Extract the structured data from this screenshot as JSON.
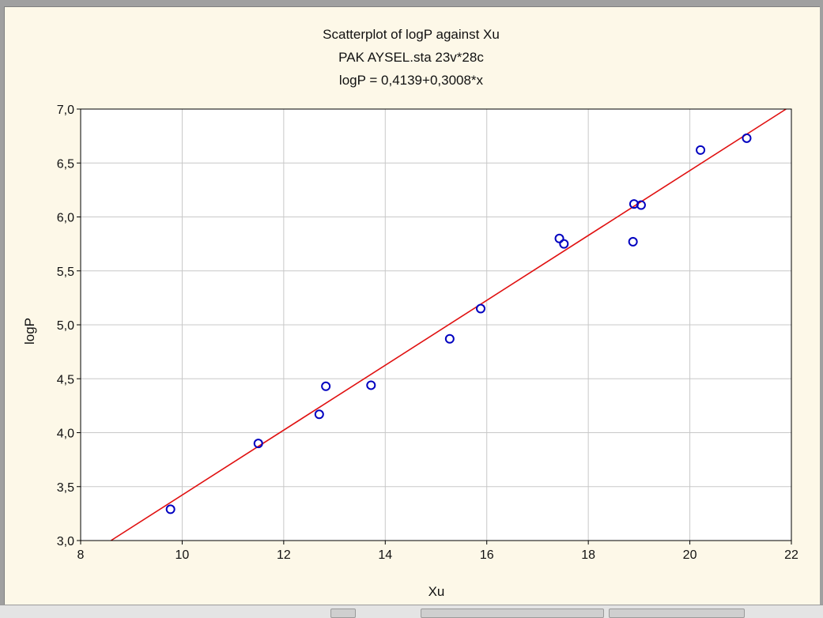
{
  "chart_data": {
    "type": "scatter",
    "title_lines": [
      "Scatterplot of logP against Xu",
      "PAK AYSEL.sta 23v*28c",
      "logP = 0,4139+0,3008*x"
    ],
    "xlabel": "Xu",
    "ylabel": "logP",
    "xlim": [
      8,
      22
    ],
    "ylim": [
      3.0,
      7.0
    ],
    "x_ticks": [
      "8",
      "10",
      "12",
      "14",
      "16",
      "18",
      "20",
      "22"
    ],
    "y_ticks": [
      "3,0",
      "3,5",
      "4,0",
      "4,5",
      "5,0",
      "5,5",
      "6,0",
      "6,5",
      "7,0"
    ],
    "grid": true,
    "points": [
      {
        "x": 9.77,
        "y": 3.29
      },
      {
        "x": 11.5,
        "y": 3.9
      },
      {
        "x": 12.7,
        "y": 4.17
      },
      {
        "x": 12.83,
        "y": 4.43
      },
      {
        "x": 13.72,
        "y": 4.44
      },
      {
        "x": 15.27,
        "y": 4.87
      },
      {
        "x": 15.88,
        "y": 5.15
      },
      {
        "x": 17.43,
        "y": 5.8
      },
      {
        "x": 17.52,
        "y": 5.75
      },
      {
        "x": 18.88,
        "y": 5.77
      },
      {
        "x": 18.9,
        "y": 6.12
      },
      {
        "x": 19.04,
        "y": 6.11
      },
      {
        "x": 20.21,
        "y": 6.62
      },
      {
        "x": 21.12,
        "y": 6.73
      }
    ],
    "fit_line": {
      "intercept": 0.4139,
      "slope": 0.3008
    },
    "colors": {
      "points": "#0000c0",
      "fit_line": "#e01010",
      "grid": "#c8c8c8",
      "plot_background": "#ffffff",
      "panel_background": "#fdf8e8"
    }
  }
}
